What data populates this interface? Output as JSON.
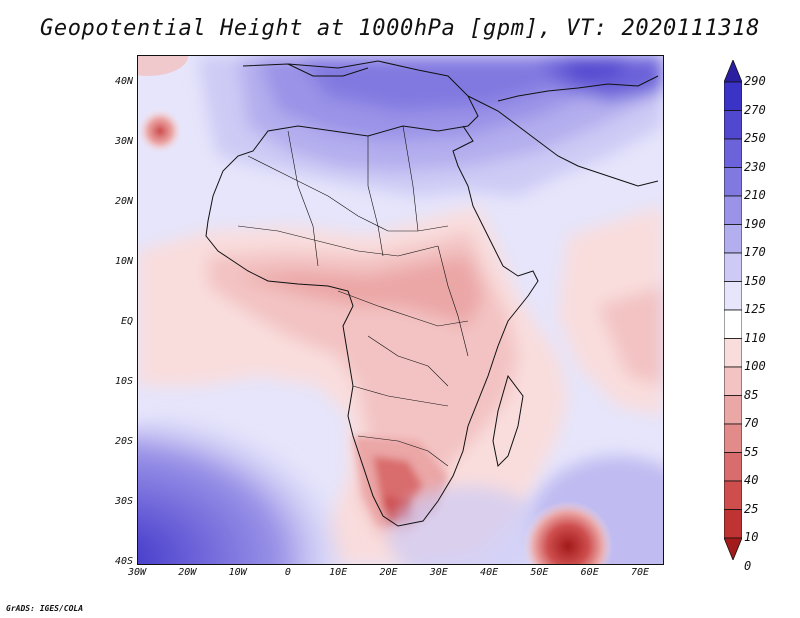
{
  "title": "Geopotential Height at 1000hPa [gpm], VT: 2020111318",
  "credit": "GrADS: IGES/COLA",
  "map": {
    "type": "filled-contour-map",
    "region": "Africa",
    "lon_range": [
      -30,
      75
    ],
    "lat_range": [
      -40,
      45
    ],
    "lat_ticks": [
      "40N",
      "30N",
      "20N",
      "10N",
      "EQ",
      "10S",
      "20S",
      "30S",
      "40S"
    ],
    "lon_ticks": [
      "30W",
      "20W",
      "10W",
      "0",
      "10E",
      "20E",
      "30E",
      "40E",
      "50E",
      "60E",
      "70E"
    ]
  },
  "legend": {
    "levels": [
      "290",
      "270",
      "250",
      "230",
      "210",
      "190",
      "170",
      "150",
      "125",
      "110",
      "100",
      "85",
      "70",
      "55",
      "40",
      "25",
      "10",
      "0"
    ],
    "colors": [
      "#2a1fa0",
      "#3b32c6",
      "#5247cf",
      "#6c62d9",
      "#8279e0",
      "#9a93e7",
      "#b3aeee",
      "#cdcaf5",
      "#e6e5fb",
      "#ffffff",
      "#f9dddd",
      "#f3c2c2",
      "#eba6a6",
      "#e38a8a",
      "#d96c6c",
      "#ce4e4e",
      "#bf3333",
      "#a31a1a"
    ]
  }
}
